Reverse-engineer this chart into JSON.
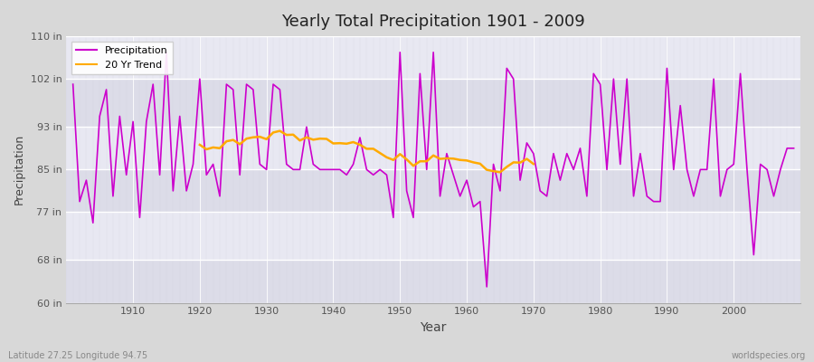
{
  "title": "Yearly Total Precipitation 1901 - 2009",
  "xlabel": "Year",
  "ylabel": "Precipitation",
  "footnote_left": "Latitude 27.25 Longitude 94.75",
  "footnote_right": "worldspecies.org",
  "ylim": [
    60,
    110
  ],
  "yticks": [
    60,
    68,
    77,
    85,
    93,
    102,
    110
  ],
  "ytick_labels": [
    "60 in",
    "68 in",
    "77 in",
    "85 in",
    "93 in",
    "102 in",
    "110 in"
  ],
  "fig_bg": "#d8d8d8",
  "plot_bg": "#e4e4ee",
  "precip_color": "#cc00cc",
  "trend_color": "#ffaa00",
  "years": [
    1901,
    1902,
    1903,
    1904,
    1905,
    1906,
    1907,
    1908,
    1909,
    1910,
    1911,
    1912,
    1913,
    1914,
    1915,
    1916,
    1917,
    1918,
    1919,
    1920,
    1921,
    1922,
    1923,
    1924,
    1925,
    1926,
    1927,
    1928,
    1929,
    1930,
    1931,
    1932,
    1933,
    1934,
    1935,
    1936,
    1937,
    1938,
    1939,
    1940,
    1941,
    1942,
    1943,
    1944,
    1945,
    1946,
    1947,
    1948,
    1949,
    1950,
    1951,
    1952,
    1953,
    1954,
    1955,
    1956,
    1957,
    1958,
    1959,
    1960,
    1961,
    1962,
    1963,
    1964,
    1965,
    1966,
    1967,
    1968,
    1969,
    1970,
    1971,
    1972,
    1973,
    1974,
    1975,
    1976,
    1977,
    1978,
    1979,
    1980,
    1981,
    1982,
    1983,
    1984,
    1985,
    1986,
    1987,
    1988,
    1989,
    1990,
    1991,
    1992,
    1993,
    1994,
    1995,
    1996,
    1997,
    1998,
    1999,
    2000,
    2001,
    2002,
    2003,
    2004,
    2005,
    2006,
    2007,
    2008,
    2009
  ],
  "precip": [
    101,
    79,
    83,
    75,
    95,
    100,
    80,
    95,
    84,
    94,
    76,
    94,
    101,
    84,
    107,
    81,
    95,
    81,
    86,
    102,
    84,
    86,
    80,
    101,
    100,
    84,
    101,
    100,
    86,
    85,
    101,
    100,
    86,
    85,
    85,
    93,
    86,
    85,
    85,
    85,
    85,
    84,
    86,
    91,
    85,
    84,
    85,
    84,
    76,
    107,
    81,
    76,
    103,
    85,
    107,
    80,
    88,
    84,
    80,
    83,
    78,
    79,
    63,
    86,
    81,
    104,
    102,
    83,
    90,
    88,
    81,
    80,
    88,
    83,
    88,
    85,
    89,
    80,
    103,
    101,
    85,
    102,
    86,
    102,
    80,
    88,
    80,
    79,
    79,
    104,
    85,
    97,
    85,
    80,
    85,
    85,
    102,
    80,
    85,
    86,
    103,
    85,
    69,
    86,
    85,
    80,
    85,
    89,
    89
  ],
  "trend_start_year": 1910,
  "trend_end_year": 1970,
  "xlim_left": 1900,
  "xlim_right": 2010
}
